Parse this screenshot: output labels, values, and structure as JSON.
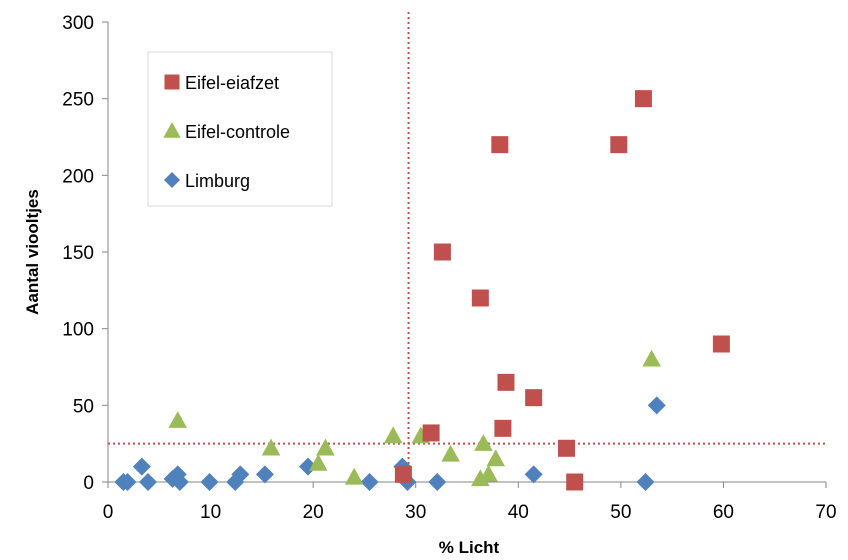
{
  "chart_data": {
    "type": "scatter",
    "title": "",
    "xlabel": "% Licht",
    "ylabel": "Aantal viooltjes",
    "xlim": [
      0,
      70
    ],
    "ylim": [
      0,
      300
    ],
    "x_ticks": [
      0,
      10,
      20,
      30,
      40,
      50,
      60,
      70
    ],
    "y_ticks": [
      0,
      50,
      100,
      150,
      200,
      250,
      300
    ],
    "x_tick_labels": [
      "0",
      "10",
      "20",
      "30",
      "40",
      "50",
      "60",
      "70"
    ],
    "y_tick_labels": [
      "0",
      "50",
      "100",
      "150",
      "200",
      "250",
      "300"
    ],
    "grid": false,
    "legend_position": "top-left",
    "reference_lines": [
      {
        "orientation": "vertical",
        "value": 29.3,
        "color": "#c0504d",
        "style": "dotted"
      },
      {
        "orientation": "horizontal",
        "value": 25,
        "color": "#c0504d",
        "style": "dotted"
      }
    ],
    "series": [
      {
        "name": "Eifel-eiafzet",
        "marker": "square",
        "color": "#c0504d",
        "x": [
          28.8,
          31.5,
          32.6,
          36.3,
          38.2,
          38.5,
          38.8,
          41.5,
          44.7,
          45.5,
          49.8,
          52.2,
          59.8
        ],
        "y": [
          5,
          32,
          150,
          120,
          220,
          35,
          65,
          55,
          22,
          0,
          220,
          250,
          90
        ]
      },
      {
        "name": "Eifel-controle",
        "marker": "triangle",
        "color": "#9bbb59",
        "x": [
          6.8,
          15.9,
          20.5,
          21.2,
          24,
          27.8,
          30.5,
          33.4,
          36.3,
          36.6,
          37.1,
          37.8,
          53
        ],
        "y": [
          40,
          22,
          12,
          22,
          3,
          30,
          30,
          18,
          2,
          25,
          5,
          15,
          80
        ]
      },
      {
        "name": "Limburg",
        "marker": "diamond",
        "color": "#4f81bd",
        "x": [
          1.5,
          1.9,
          3.3,
          3.9,
          6.3,
          6.8,
          7.0,
          9.9,
          12.4,
          12.9,
          15.3,
          19.5,
          25.5,
          28.7,
          29.2,
          32.1,
          41.5,
          52.4,
          53.5
        ],
        "y": [
          0,
          0,
          10,
          0,
          2,
          5,
          0,
          0,
          0,
          5,
          5,
          10,
          0,
          10,
          0,
          0,
          5,
          0,
          50
        ]
      }
    ]
  }
}
